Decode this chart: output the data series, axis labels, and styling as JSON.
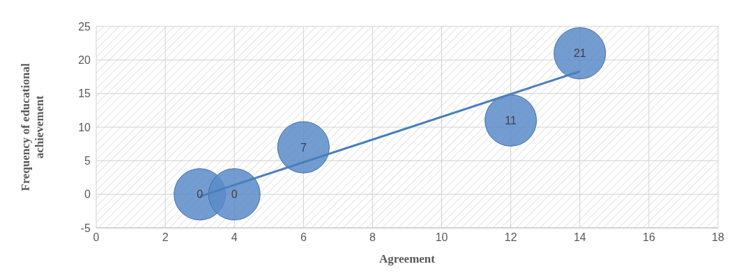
{
  "chart_data": {
    "type": "bubble",
    "xlabel": "Agreement",
    "ylabel": "Frequency of educational achievement",
    "series": [
      {
        "color": "#5b8bc9",
        "x": [
          3,
          4,
          6,
          12,
          14
        ],
        "values": [
          0,
          0,
          7,
          11,
          21
        ],
        "sizes": [
          1,
          1,
          1,
          1,
          1
        ],
        "value_labels": [
          "0",
          "0",
          "7",
          "11",
          "21"
        ]
      },
      {
        "type": "line",
        "color": "#4a7ebb",
        "x": [
          3,
          14
        ],
        "values": [
          -0.3,
          18.3
        ],
        "marker": "none"
      }
    ],
    "xlim": [
      0,
      18
    ],
    "xticks": [
      0,
      2,
      4,
      6,
      8,
      10,
      12,
      14,
      16,
      18
    ],
    "ylim": [
      -5,
      25
    ],
    "yticks": [
      -5,
      0,
      5,
      10,
      15,
      20,
      25
    ],
    "grid": true
  }
}
